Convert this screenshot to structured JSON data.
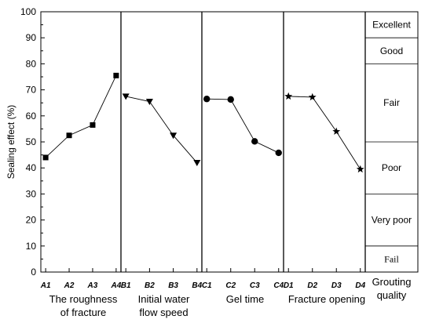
{
  "chart_data": {
    "type": "line",
    "ylabel": "Sealing effect (%)",
    "ylim": [
      0,
      100
    ],
    "yticks": [
      0,
      10,
      20,
      30,
      40,
      50,
      60,
      70,
      80,
      90,
      100
    ],
    "grid": "horizontal lines in quality column only",
    "groups": [
      {
        "label_lines": [
          "The roughness",
          "of fracture"
        ],
        "categories": [
          "A1",
          "A2",
          "A3",
          "A4"
        ],
        "values": [
          44,
          52.5,
          56.5,
          75.5
        ],
        "marker": "square"
      },
      {
        "label_lines": [
          "Initial water",
          "flow speed"
        ],
        "categories": [
          "B1",
          "B2",
          "B3",
          "B4"
        ],
        "values": [
          67.5,
          65.5,
          52.5,
          42
        ],
        "marker": "triangle-down"
      },
      {
        "label_lines": [
          "Gel time"
        ],
        "categories": [
          "C1",
          "C2",
          "C3",
          "C4"
        ],
        "values": [
          66.5,
          66.3,
          50.2,
          45.8
        ],
        "marker": "circle"
      },
      {
        "label_lines": [
          "Fracture opening"
        ],
        "categories": [
          "D1",
          "D2",
          "D3",
          "D4"
        ],
        "values": [
          67.5,
          67.2,
          54,
          39.5
        ],
        "marker": "star"
      }
    ],
    "quality_column": {
      "title_lines": [
        "Grouting",
        "quality"
      ],
      "bands": [
        {
          "label": "Excellent",
          "range": [
            90,
            100
          ]
        },
        {
          "label": "Good",
          "range": [
            80,
            90
          ]
        },
        {
          "label": "Fair",
          "range": [
            50,
            80
          ]
        },
        {
          "label": "Poor",
          "range": [
            30,
            50
          ]
        },
        {
          "label": "Very poor",
          "range": [
            10,
            30
          ]
        },
        {
          "label": "Fail",
          "range": [
            0,
            10
          ]
        }
      ]
    },
    "colors": {
      "line": "#000000",
      "axis": "#000000"
    }
  }
}
